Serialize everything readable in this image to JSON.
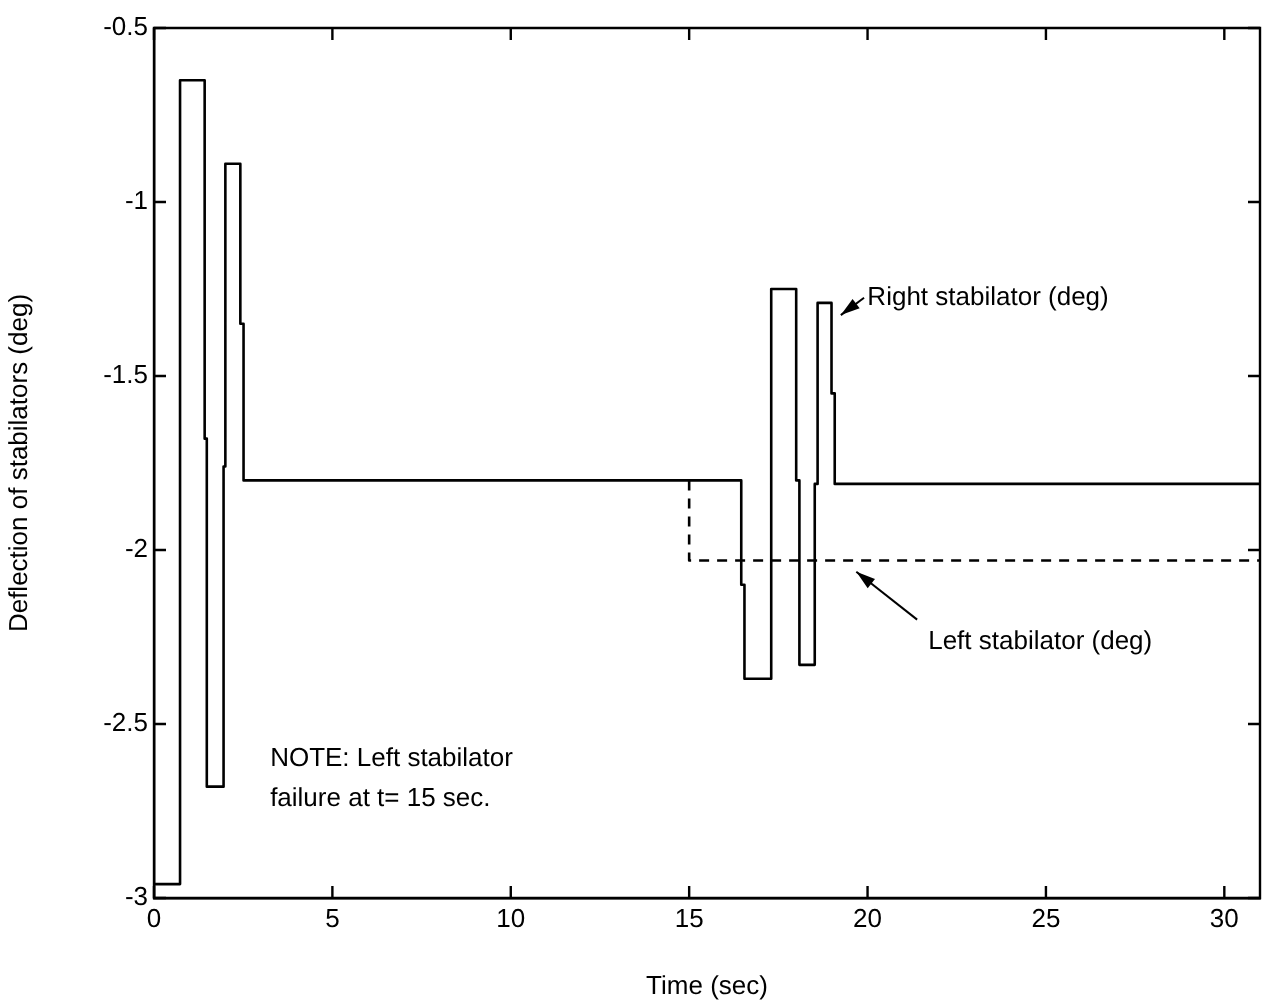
{
  "chart_data": {
    "type": "line",
    "xlabel": "Time (sec)",
    "ylabel": "Deflection of stabilators (deg)",
    "xlim": [
      0,
      31
    ],
    "xticks": [
      0,
      5,
      10,
      15,
      20,
      25,
      30
    ],
    "ylim": [
      -3,
      -0.5
    ],
    "yticks": [
      -3,
      -2.5,
      -2,
      -1.5,
      -1,
      -0.5
    ],
    "grid": false,
    "marker": "none",
    "annotations": [
      "NOTE: Left stabilator\nfailure at t= 15 sec."
    ],
    "series": [
      {
        "name": "Right stabilator (deg)",
        "color": "#000000",
        "line_style": "solid",
        "x": [
          0,
          0.73,
          0.73,
          1.42,
          1.42,
          1.48,
          1.48,
          1.95,
          1.95,
          2.0,
          2.0,
          2.42,
          2.42,
          2.51,
          2.51,
          16.46,
          16.46,
          16.55,
          16.55,
          17.3,
          17.3,
          18.0,
          18.0,
          18.09,
          18.09,
          18.52,
          18.52,
          18.6,
          18.6,
          18.99,
          18.99,
          19.08,
          19.08,
          31
        ],
        "values": [
          -2.96,
          -2.96,
          -0.65,
          -0.65,
          -1.68,
          -1.68,
          -2.68,
          -2.68,
          -1.76,
          -1.76,
          -0.89,
          -0.89,
          -1.35,
          -1.35,
          -1.8,
          -1.8,
          -2.1,
          -2.1,
          -2.37,
          -2.37,
          -1.25,
          -1.25,
          -1.8,
          -1.8,
          -2.33,
          -2.33,
          -1.81,
          -1.81,
          -1.29,
          -1.29,
          -1.55,
          -1.55,
          -1.81,
          -1.81
        ]
      },
      {
        "name": "Left stabilator (deg)",
        "color": "#000000",
        "line_style": "dashed",
        "x": [
          15,
          15,
          31
        ],
        "values": [
          -1.8,
          -2.03,
          -2.03
        ]
      }
    ]
  }
}
